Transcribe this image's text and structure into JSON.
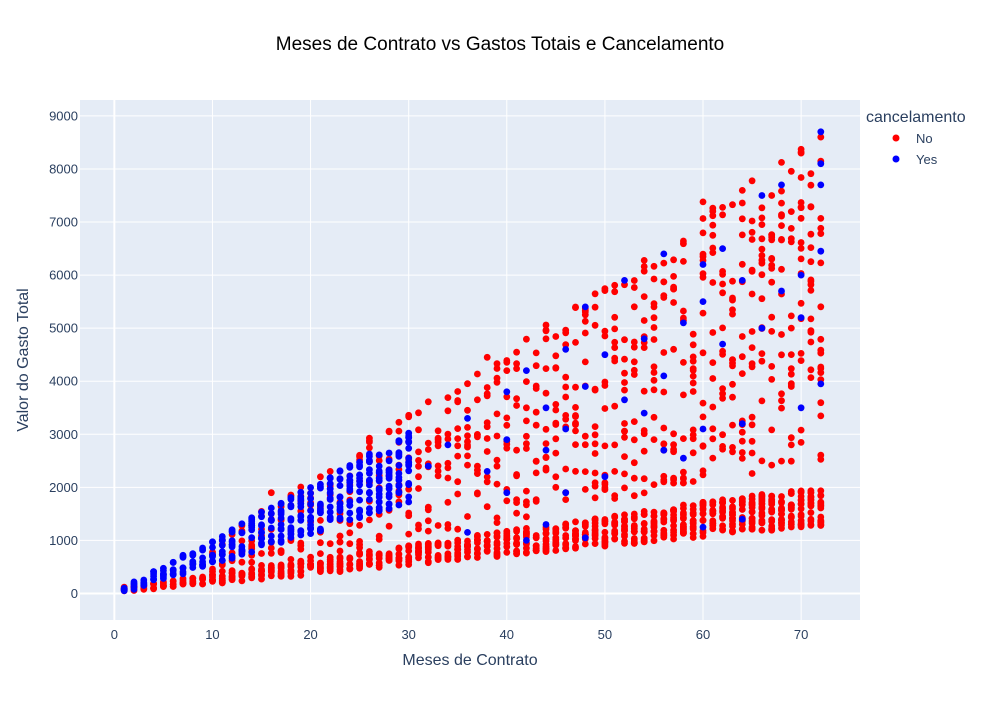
{
  "chart_data": {
    "type": "scatter",
    "title": "Meses de Contrato vs Gastos Totais e Cancelamento",
    "xlabel": "Meses de Contrato",
    "ylabel": "Valor do Gasto Total",
    "xlim": [
      -3.5,
      76
    ],
    "ylim": [
      -500,
      9300
    ],
    "x_ticks": [
      0,
      10,
      20,
      30,
      40,
      50,
      60,
      70
    ],
    "y_ticks": [
      0,
      1000,
      2000,
      3000,
      4000,
      5000,
      6000,
      7000,
      8000,
      9000
    ],
    "grid": true,
    "legend": {
      "title": "cancelamento",
      "position": "top-right",
      "entries": [
        {
          "label": "No",
          "color": "#ff0000"
        },
        {
          "label": "Yes",
          "color": "#0000ff"
        }
      ]
    },
    "background_color": "#e5ecf6",
    "series": [
      {
        "name": "No",
        "color": "#ff0000",
        "bands": [
          {
            "x_start": 1,
            "x_end": 72,
            "low_start": 20,
            "low_end": 1280,
            "high_start": 120,
            "high_end": 2050
          },
          {
            "x_start": 10,
            "x_end": 72,
            "low_start": 300,
            "low_end": 2500,
            "high_start": 950,
            "high_end": 8650
          }
        ],
        "points": [
          [
            16,
            1900
          ],
          [
            38,
            4450
          ],
          [
            60,
            7380
          ],
          [
            72,
            8600
          ],
          [
            70,
            8300
          ]
        ]
      },
      {
        "name": "Yes",
        "color": "#0000ff",
        "bands": [
          {
            "x_start": 1,
            "x_end": 30,
            "low_start": 20,
            "low_end": 1700,
            "high_start": 120,
            "high_end": 3050
          }
        ],
        "points": [
          [
            72,
            8700
          ],
          [
            72,
            8100
          ],
          [
            72,
            7700
          ],
          [
            68,
            7700
          ],
          [
            66,
            7500
          ],
          [
            62,
            6500
          ],
          [
            60,
            6200
          ],
          [
            56,
            6400
          ],
          [
            52,
            5900
          ],
          [
            48,
            5400
          ],
          [
            46,
            4600
          ],
          [
            42,
            4200
          ],
          [
            40,
            3800
          ],
          [
            72,
            6450
          ],
          [
            70,
            6000
          ],
          [
            68,
            5700
          ],
          [
            64,
            5900
          ],
          [
            60,
            5500
          ],
          [
            58,
            5100
          ],
          [
            54,
            4800
          ],
          [
            50,
            4500
          ],
          [
            48,
            3900
          ],
          [
            44,
            3500
          ],
          [
            70,
            5200
          ],
          [
            66,
            5000
          ],
          [
            62,
            4700
          ],
          [
            72,
            3950
          ],
          [
            64,
            3200
          ],
          [
            60,
            3100
          ],
          [
            56,
            2700
          ],
          [
            50,
            2200
          ],
          [
            46,
            1900
          ],
          [
            40,
            2900
          ],
          [
            36,
            3300
          ],
          [
            34,
            2800
          ],
          [
            44,
            1300
          ],
          [
            48,
            1050
          ],
          [
            42,
            1000
          ],
          [
            64,
            1400
          ],
          [
            60,
            1250
          ],
          [
            58,
            2550
          ],
          [
            70,
            3500
          ],
          [
            52,
            3650
          ],
          [
            38,
            2300
          ],
          [
            32,
            2400
          ],
          [
            56,
            4100
          ],
          [
            54,
            3400
          ],
          [
            46,
            3100
          ],
          [
            44,
            2700
          ],
          [
            36,
            1150
          ],
          [
            40,
            1900
          ]
        ]
      }
    ]
  }
}
